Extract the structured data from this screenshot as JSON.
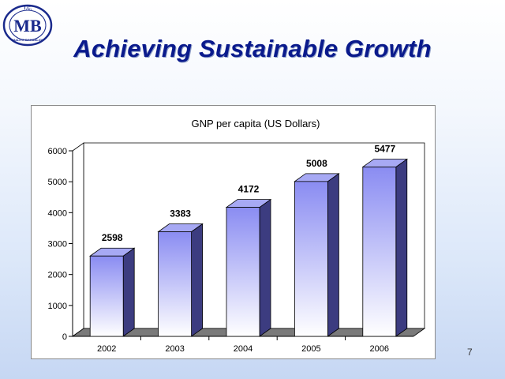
{
  "slide": {
    "title": "Achieving Sustainable Growth",
    "page_number": "7",
    "logo": {
      "top_text": "T.C.",
      "letters": "MB",
      "ring_text": "MALIYE BAKANLIGI"
    }
  },
  "chart_data": {
    "type": "bar",
    "title": "GNP per capita (US Dollars)",
    "categories": [
      "2002",
      "2003",
      "2004",
      "2005",
      "2006"
    ],
    "values": [
      2598,
      3383,
      4172,
      5008,
      5477
    ],
    "data_labels": [
      "2598",
      "3383",
      "4172",
      "5008",
      "5477"
    ],
    "ylim": [
      0,
      6000
    ],
    "yticks": [
      "0",
      "1000",
      "2000",
      "3000",
      "4000",
      "5000",
      "6000"
    ],
    "xlabel": "",
    "ylabel": "",
    "grid": false,
    "legend": "none",
    "style": "3d-column",
    "colors": {
      "bar_top": "#8a8cf2",
      "bar_bottom": "#ffffff",
      "bar_side": "#3c3c80",
      "bar_cap": "#a7a9f4",
      "floor": "#7a7a7a",
      "title_color": "#0a1a8c"
    }
  }
}
